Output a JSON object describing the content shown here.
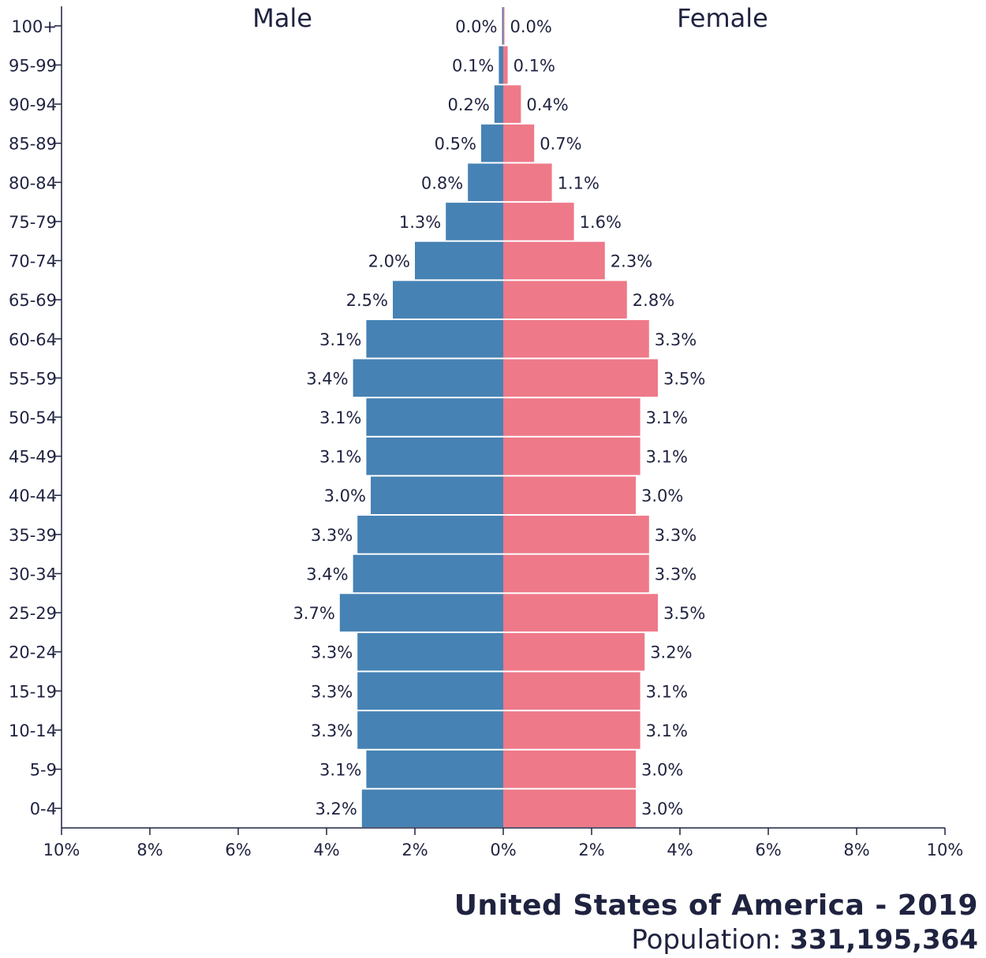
{
  "chart_data": {
    "type": "bar",
    "layout": "population pyramid",
    "categories": [
      "100+",
      "95-99",
      "90-94",
      "85-89",
      "80-84",
      "75-79",
      "70-74",
      "65-69",
      "60-64",
      "55-59",
      "50-54",
      "45-49",
      "40-44",
      "35-39",
      "30-34",
      "25-29",
      "20-24",
      "15-19",
      "10-14",
      "5-9",
      "0-4"
    ],
    "series": [
      {
        "name": "Male",
        "color": "#4682b4",
        "values": [
          0.0,
          0.1,
          0.2,
          0.5,
          0.8,
          1.3,
          2.0,
          2.5,
          3.1,
          3.4,
          3.1,
          3.1,
          3.0,
          3.3,
          3.4,
          3.7,
          3.3,
          3.3,
          3.3,
          3.1,
          3.2
        ],
        "labels": [
          "0.0%",
          "0.1%",
          "0.2%",
          "0.5%",
          "0.8%",
          "1.3%",
          "2.0%",
          "2.5%",
          "3.1%",
          "3.4%",
          "3.1%",
          "3.1%",
          "3.0%",
          "3.3%",
          "3.4%",
          "3.7%",
          "3.3%",
          "3.3%",
          "3.3%",
          "3.1%",
          "3.2%"
        ]
      },
      {
        "name": "Female",
        "color": "#ee7989",
        "values": [
          0.0,
          0.1,
          0.4,
          0.7,
          1.1,
          1.6,
          2.3,
          2.8,
          3.3,
          3.5,
          3.1,
          3.1,
          3.0,
          3.3,
          3.3,
          3.5,
          3.2,
          3.1,
          3.1,
          3.0,
          3.0
        ],
        "labels": [
          "0.0%",
          "0.1%",
          "0.4%",
          "0.7%",
          "1.1%",
          "1.6%",
          "2.3%",
          "2.8%",
          "3.3%",
          "3.5%",
          "3.1%",
          "3.1%",
          "3.0%",
          "3.3%",
          "3.3%",
          "3.5%",
          "3.2%",
          "3.1%",
          "3.1%",
          "3.0%",
          "3.0%"
        ]
      }
    ],
    "xlim": [
      -10,
      10
    ],
    "x_ticks": [
      -10,
      -8,
      -6,
      -4,
      -2,
      0,
      2,
      4,
      6,
      8,
      10
    ],
    "x_tick_labels": [
      "10%",
      "8%",
      "6%",
      "4%",
      "2%",
      "0%",
      "2%",
      "4%",
      "6%",
      "8%",
      "10%"
    ],
    "grid": false
  },
  "footer": {
    "country_year": "United States of America - 2019",
    "population_label": "Population: ",
    "population_value": "331,195,364"
  }
}
